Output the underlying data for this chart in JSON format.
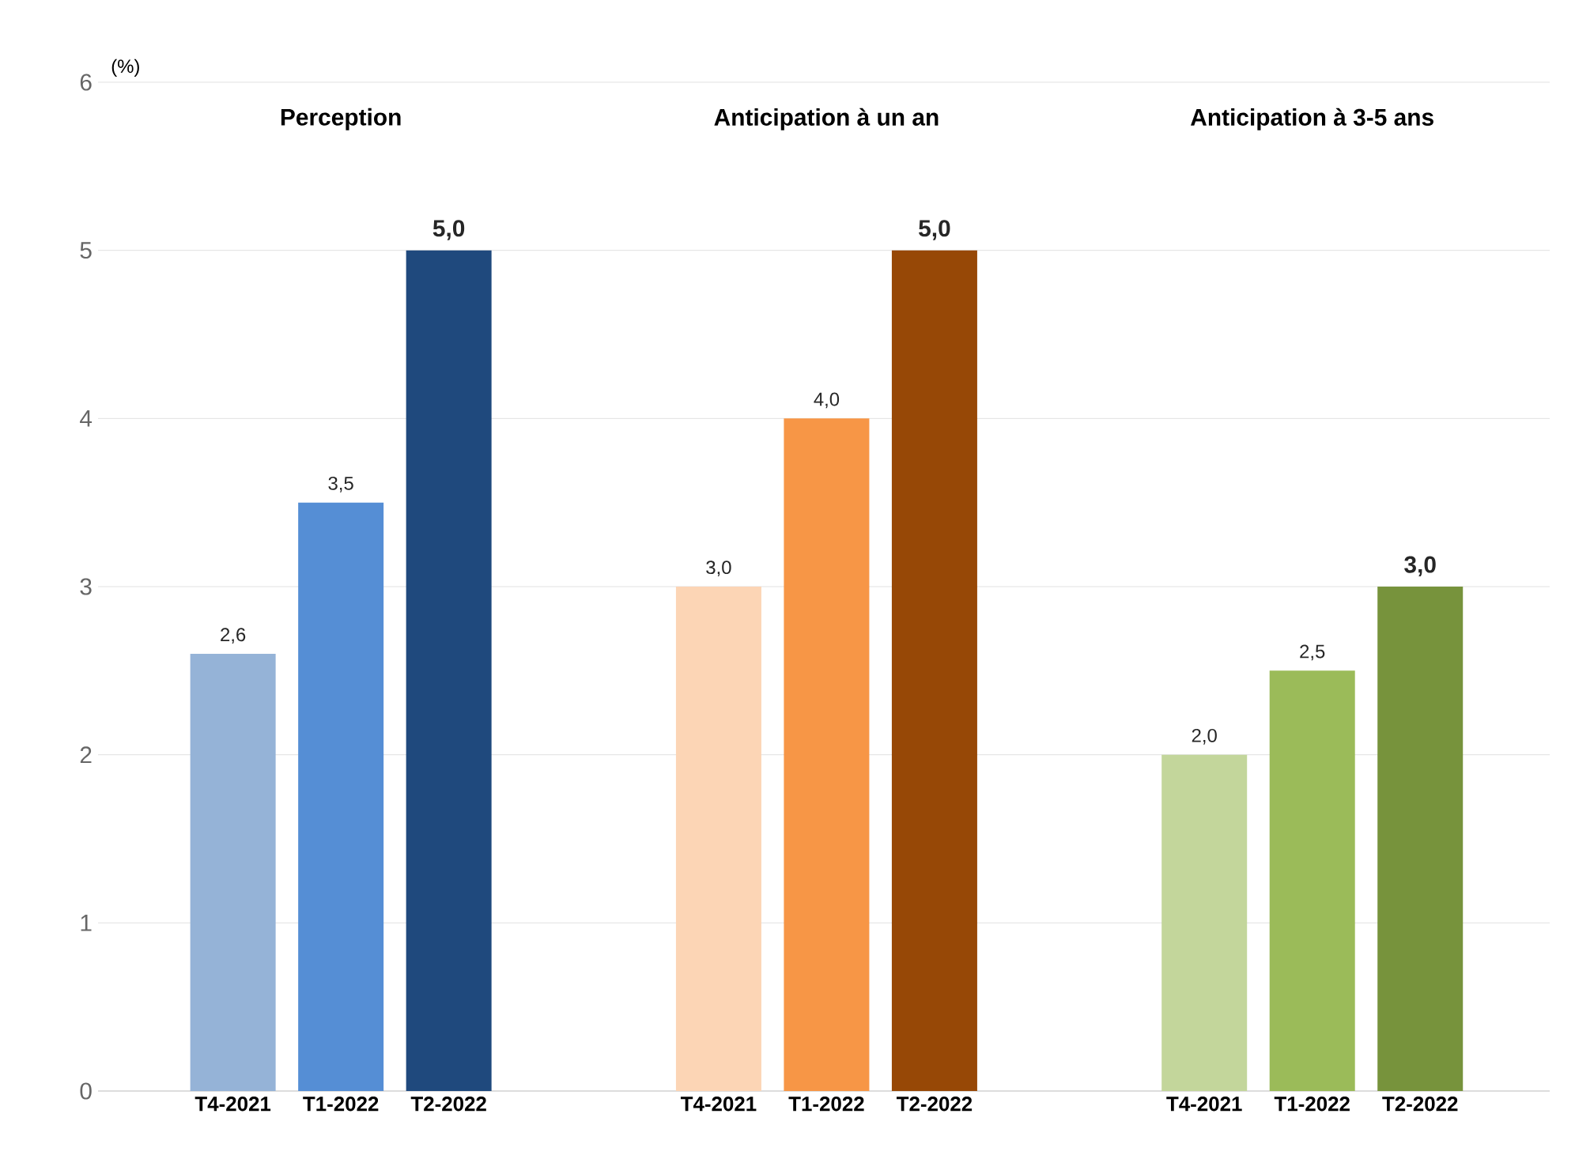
{
  "chart_data": {
    "type": "bar",
    "ylabel": "(%)",
    "categories": [
      "T4-2021",
      "T1-2022",
      "T2-2022",
      "T4-2021",
      "T1-2022",
      "T2-2022",
      "T4-2021",
      "T1-2022",
      "T2-2022"
    ],
    "values": [
      2.6,
      3.5,
      5.0,
      3.0,
      4.0,
      5.0,
      2.0,
      2.5,
      3.0
    ],
    "colors": [
      "#95b3d7",
      "#558ed5",
      "#1f497d",
      "#fcd5b5",
      "#f79646",
      "#974806",
      "#c3d69b",
      "#9bbb59",
      "#77933c"
    ],
    "value_labels": [
      "2,6",
      "3,5",
      "5,0",
      "3,0",
      "4,0",
      "5,0",
      "2,0",
      "2,5",
      "3,0"
    ],
    "annotations": [
      "Perception",
      "Anticipation à un an",
      "Anticipation à 3-5 ans"
    ],
    "ylim": [
      0,
      6
    ],
    "yticks": [
      0,
      1,
      2,
      3,
      4,
      5,
      6
    ],
    "grid": "y"
  }
}
